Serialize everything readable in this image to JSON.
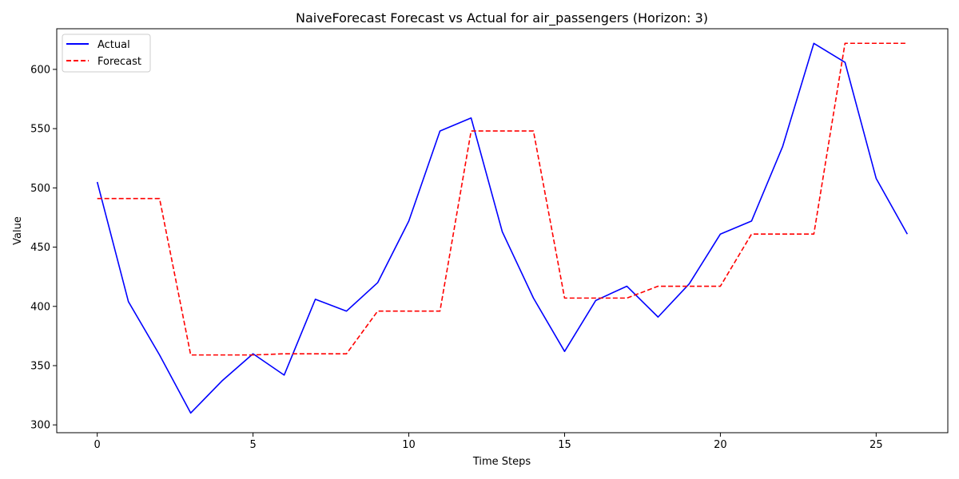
{
  "chart_data": {
    "type": "line",
    "title": "NaiveForecast Forecast vs Actual for air_passengers (Horizon: 3)",
    "xlabel": "Time Steps",
    "ylabel": "Value",
    "xlim": [
      -1.3,
      27.3
    ],
    "ylim": [
      293.4,
      634.3
    ],
    "xticks": [
      0,
      5,
      10,
      15,
      20,
      25
    ],
    "yticks": [
      300,
      350,
      400,
      450,
      500,
      550,
      600
    ],
    "grid": false,
    "legend": "top-left",
    "x": [
      0,
      1,
      2,
      3,
      4,
      5,
      6,
      7,
      8,
      9,
      10,
      11,
      12,
      13,
      14,
      15,
      16,
      17,
      18,
      19,
      20,
      21,
      22,
      23,
      24,
      25,
      26
    ],
    "series": [
      {
        "name": "Actual",
        "color": "#0000ff",
        "style": "solid",
        "values": [
          505,
          404,
          359,
          310,
          337,
          360,
          342,
          406,
          396,
          420,
          472,
          548,
          559,
          463,
          407,
          362,
          405,
          417,
          391,
          419,
          461,
          472,
          535,
          622,
          606,
          508,
          461
        ]
      },
      {
        "name": "Forecast",
        "color": "#ff0000",
        "style": "dashed",
        "values": [
          491,
          491,
          491,
          359,
          359,
          359,
          360,
          360,
          360,
          396,
          396,
          396,
          548,
          548,
          548,
          407,
          407,
          407,
          417,
          417,
          417,
          461,
          461,
          461,
          622,
          622,
          622
        ]
      }
    ]
  }
}
